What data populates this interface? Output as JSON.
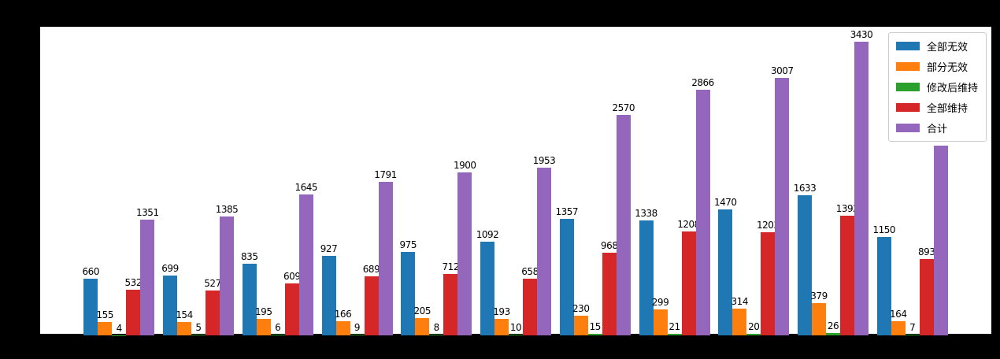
{
  "figure": {
    "background_color": "#000000",
    "plot_background_color": "#ffffff"
  },
  "legend": {
    "position": "upper right",
    "items": [
      "全部无效",
      "部分无效",
      "修改后维持",
      "全部维持",
      "合计"
    ]
  },
  "chart_data": {
    "type": "bar",
    "title": "",
    "xlabel": "",
    "ylabel": "",
    "grid": false,
    "bar_value_labels": true,
    "legend_position": "upper right",
    "ylim": [
      0,
      3600
    ],
    "groups": 11,
    "categories": [
      "",
      "",
      "",
      "",
      "",
      "",
      "",
      "",
      "",
      "",
      ""
    ],
    "series": [
      {
        "name": "全部无效",
        "color": "#1f77b4",
        "values": [
          660,
          699,
          835,
          927,
          975,
          1092,
          1357,
          1338,
          1470,
          1633,
          1150
        ]
      },
      {
        "name": "部分无效",
        "color": "#ff7f0e",
        "values": [
          155,
          154,
          195,
          166,
          205,
          193,
          230,
          299,
          314,
          379,
          164
        ]
      },
      {
        "name": "修改后维持",
        "color": "#2ca02c",
        "values": [
          4,
          5,
          6,
          9,
          8,
          10,
          15,
          21,
          20,
          26,
          7
        ]
      },
      {
        "name": "全部维持",
        "color": "#d62728",
        "values": [
          532,
          527,
          609,
          689,
          712,
          658,
          968,
          1208,
          1203,
          1392,
          893
        ]
      },
      {
        "name": "合计",
        "color": "#9467bd",
        "values": [
          1351,
          1385,
          1645,
          1791,
          1900,
          1953,
          2570,
          2866,
          3007,
          3430,
          2214
        ]
      }
    ]
  }
}
